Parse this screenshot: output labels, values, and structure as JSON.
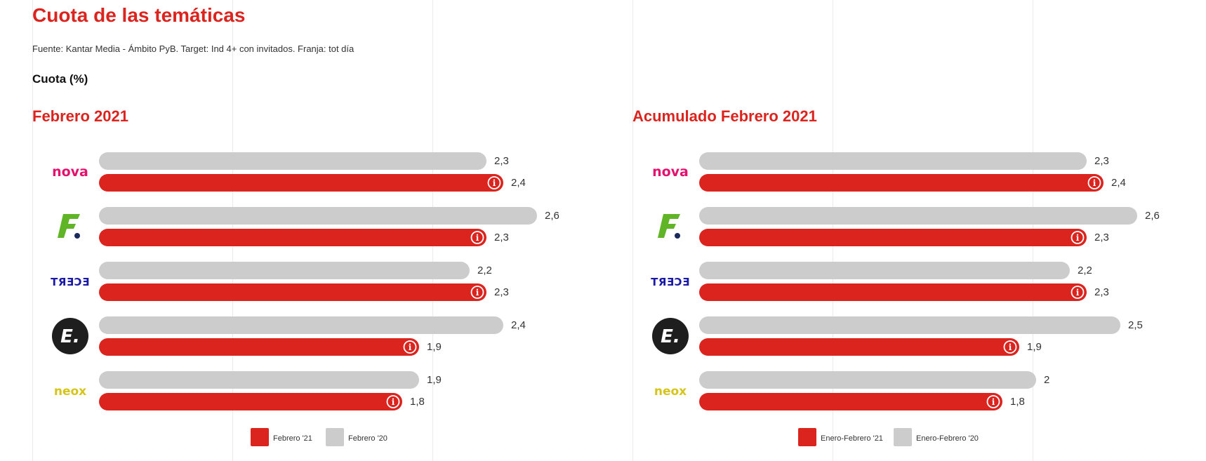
{
  "header": {
    "title": "Cuota de las temáticas",
    "source": "Fuente: Kantar Media - Ámbito PyB. Target: Ind 4+ con invitados. Franja: tot día",
    "metric": "Cuota (%)"
  },
  "colors": {
    "current": "#dc241f",
    "previous": "#cccccc",
    "title": "#dc241f"
  },
  "chart_data": [
    {
      "type": "bar",
      "orientation": "horizontal",
      "title": "Febrero 2021",
      "categories": [
        "nova",
        "F.",
        "TRECE",
        "E.",
        "neox"
      ],
      "category_icons": [
        "nova-logo",
        "fdf-logo",
        "trece-logo",
        "energy-logo",
        "neox-logo"
      ],
      "series": [
        {
          "name": "Febrero '20",
          "color": "#cccccc",
          "values": [
            2.3,
            2.6,
            2.2,
            2.4,
            1.9
          ],
          "labels": [
            "2,3",
            "2,6",
            "2,2",
            "2,4",
            "1,9"
          ]
        },
        {
          "name": "Febrero '21",
          "color": "#dc241f",
          "values": [
            2.4,
            2.3,
            2.3,
            1.9,
            1.8
          ],
          "labels": [
            "2,4",
            "2,3",
            "2,3",
            "1,9",
            "1,8"
          ]
        }
      ],
      "legend": [
        "Febrero '21",
        "Febrero '20"
      ],
      "legend_position": "bottom",
      "grid": true
    },
    {
      "type": "bar",
      "orientation": "horizontal",
      "title": "Acumulado Febrero 2021",
      "categories": [
        "nova",
        "F.",
        "TRECE",
        "E.",
        "neox"
      ],
      "category_icons": [
        "nova-logo",
        "fdf-logo",
        "trece-logo",
        "energy-logo",
        "neox-logo"
      ],
      "series": [
        {
          "name": "Enero-Febrero '20",
          "color": "#cccccc",
          "values": [
            2.3,
            2.6,
            2.2,
            2.5,
            2.0
          ],
          "labels": [
            "2,3",
            "2,6",
            "2,2",
            "2,5",
            "2"
          ]
        },
        {
          "name": "Enero-Febrero '21",
          "color": "#dc241f",
          "values": [
            2.4,
            2.3,
            2.3,
            1.9,
            1.8
          ],
          "labels": [
            "2,4",
            "2,3",
            "2,3",
            "1,9",
            "1,8"
          ]
        }
      ],
      "legend": [
        "Enero-Febrero '21",
        "Enero-Febrero '20"
      ],
      "legend_position": "bottom",
      "grid": true
    }
  ]
}
